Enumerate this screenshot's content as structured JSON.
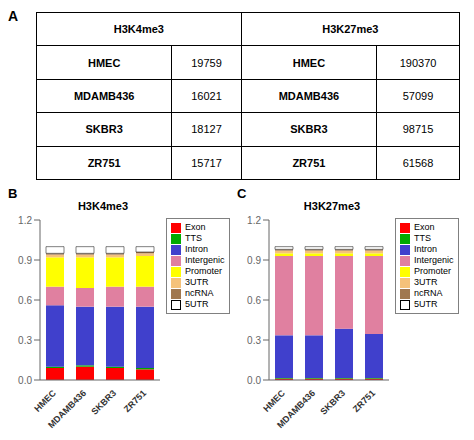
{
  "chart_data": [
    {
      "type": "table",
      "annotations": [
        "A"
      ],
      "categories": [
        "HMEC",
        "MDAMB436",
        "SKBR3",
        "ZR751"
      ],
      "series": [
        {
          "name": "H3K4me3",
          "values": [
            19759,
            16021,
            18127,
            15717
          ]
        },
        {
          "name": "H3K27me3",
          "values": [
            190370,
            57099,
            98715,
            61568
          ]
        }
      ]
    },
    {
      "type": "bar",
      "stacked": true,
      "title": "H3K4me3",
      "annotations": [
        "B"
      ],
      "categories": [
        "HMEC",
        "MDAMB436",
        "SKBR3",
        "ZR751"
      ],
      "series": [
        {
          "name": "Exon",
          "color": "#FF0000",
          "values": [
            0.09,
            0.1,
            0.09,
            0.08
          ]
        },
        {
          "name": "TTS",
          "color": "#00AA00",
          "values": [
            0.01,
            0.01,
            0.01,
            0.01
          ]
        },
        {
          "name": "Intron",
          "color": "#4040CC",
          "values": [
            0.46,
            0.44,
            0.45,
            0.46
          ]
        },
        {
          "name": "Intergenic",
          "color": "#E080A0",
          "values": [
            0.14,
            0.14,
            0.15,
            0.15
          ]
        },
        {
          "name": "Promoter",
          "color": "#FFFF00",
          "values": [
            0.22,
            0.23,
            0.22,
            0.23
          ]
        },
        {
          "name": "3UTR",
          "color": "#F5C27A",
          "values": [
            0.02,
            0.02,
            0.02,
            0.02
          ]
        },
        {
          "name": "ncRNA",
          "color": "#A07850",
          "values": [
            0.01,
            0.01,
            0.01,
            0.01
          ]
        },
        {
          "name": "5UTR",
          "color": "#FFFFFF",
          "values": [
            0.05,
            0.05,
            0.05,
            0.04
          ]
        }
      ],
      "ylim": [
        0,
        1.2
      ],
      "yticks": [
        {
          "value": 0,
          "label": "0.0"
        },
        0.3,
        0.6,
        0.9,
        1.2
      ],
      "grid": false,
      "legend": "right"
    },
    {
      "type": "bar",
      "stacked": true,
      "title": "H3K27me3",
      "annotations": [
        "C"
      ],
      "categories": [
        "HMEC",
        "MDAMB436",
        "SKBR3",
        "ZR751"
      ],
      "series": [
        {
          "name": "Exon",
          "color": "#FF0000",
          "values": [
            0.01,
            0.01,
            0.01,
            0.01
          ]
        },
        {
          "name": "TTS",
          "color": "#00AA00",
          "values": [
            0.005,
            0.005,
            0.005,
            0.005
          ]
        },
        {
          "name": "Intron",
          "color": "#4040CC",
          "values": [
            0.32,
            0.32,
            0.37,
            0.33
          ]
        },
        {
          "name": "Intergenic",
          "color": "#E080A0",
          "values": [
            0.595,
            0.595,
            0.545,
            0.585
          ]
        },
        {
          "name": "Promoter",
          "color": "#FFFF00",
          "values": [
            0.02,
            0.02,
            0.02,
            0.02
          ]
        },
        {
          "name": "3UTR",
          "color": "#F5C27A",
          "values": [
            0.02,
            0.02,
            0.02,
            0.02
          ]
        },
        {
          "name": "ncRNA",
          "color": "#A07850",
          "values": [
            0.01,
            0.01,
            0.01,
            0.01
          ]
        },
        {
          "name": "5UTR",
          "color": "#FFFFFF",
          "values": [
            0.02,
            0.02,
            0.02,
            0.02
          ]
        }
      ],
      "ylim": [
        0,
        1.2
      ],
      "yticks": [
        {
          "value": 0,
          "label": "0.0"
        },
        0.3,
        0.6,
        0.9,
        1.2
      ],
      "grid": false,
      "legend": "right"
    }
  ]
}
